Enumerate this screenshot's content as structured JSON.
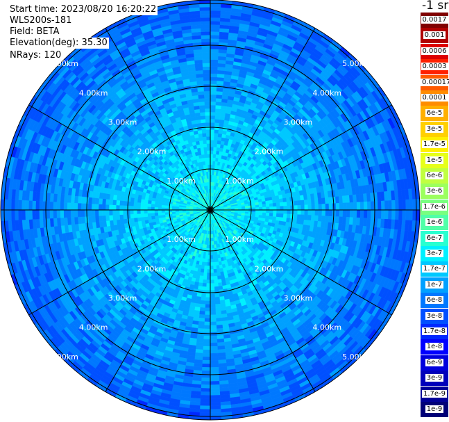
{
  "info": {
    "start_time": "Start time: 2023/08/20 16:20:22",
    "instrument": "WLS200s-181",
    "field": "Field: BETA",
    "elevation": "Elevation(deg): 35.30",
    "nrays": "NRays: 120"
  },
  "ring_labels": [
    "1.00km",
    "2.00km",
    "3.00km",
    "4.00km",
    "5.00km"
  ],
  "colorbar": {
    "unit": "-1 sr",
    "labels": [
      "0.0017",
      "0.001",
      "0.0006",
      "0.0003",
      "0.00017",
      "0.0001",
      "6e-5",
      "3e-5",
      "1.7e-5",
      "1e-5",
      "6e-6",
      "3e-6",
      "1.7e-6",
      "1e-6",
      "6e-7",
      "3e-7",
      "1.7e-7",
      "1e-7",
      "6e-8",
      "3e-8",
      "1.7e-8",
      "1e-8",
      "6e-9",
      "3e-9",
      "1.7e-9",
      "1e-9"
    ],
    "colors": [
      "#800000",
      "#b00000",
      "#dd0000",
      "#ff2000",
      "#ff5a00",
      "#ff8c00",
      "#ffb000",
      "#ffd000",
      "#fff000",
      "#e6ff1a",
      "#c0ff40",
      "#9cff5e",
      "#78ff80",
      "#50ffa8",
      "#28ffd0",
      "#00f0ff",
      "#00c8ff",
      "#00a0ff",
      "#0078ff",
      "#0050ff",
      "#0028ff",
      "#0000ff",
      "#0000dd",
      "#0000bb",
      "#000099",
      "#000077"
    ]
  }
}
